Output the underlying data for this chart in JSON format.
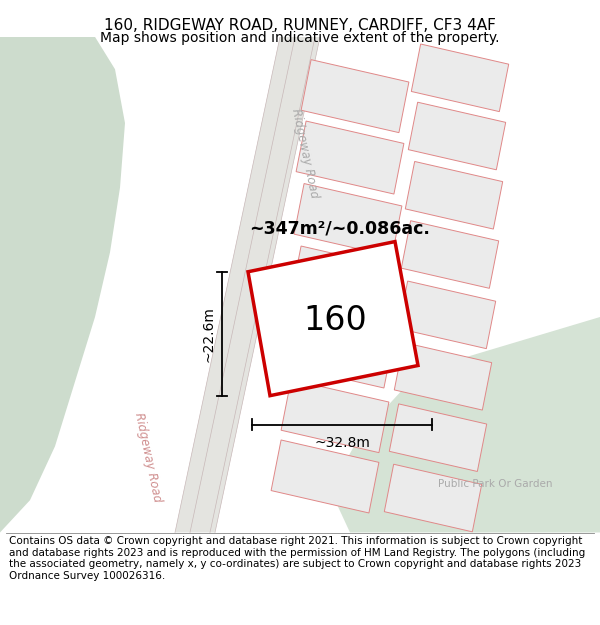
{
  "title_line1": "160, RIDGEWAY ROAD, RUMNEY, CARDIFF, CF3 4AF",
  "title_line2": "Map shows position and indicative extent of the property.",
  "footer_text": "Contains OS data © Crown copyright and database right 2021. This information is subject to Crown copyright and database rights 2023 and is reproduced with the permission of HM Land Registry. The polygons (including the associated geometry, namely x, y co-ordinates) are subject to Crown copyright and database rights 2023 Ordnance Survey 100026316.",
  "map_bg": "#f0f0ec",
  "parcel_fill": "#ebebeb",
  "parcel_border": "#e08888",
  "highlight_border": "#cc0000",
  "green_left": "#cddccd",
  "green_right": "#d5e3d5",
  "road_fill": "#e4e4e0",
  "road_line": "#d0c8c8",
  "dimension_label_width": "~32.8m",
  "dimension_label_height": "~22.6m",
  "area_label": "~347m²/~0.086ac.",
  "property_label": "160",
  "road_label_upper": "Ridgeway Road",
  "road_label_lower": "Ridgeway Road",
  "park_label": "Public Park Or Garden",
  "title_fontsize": 11,
  "subtitle_fontsize": 10,
  "footer_fontsize": 7.5
}
